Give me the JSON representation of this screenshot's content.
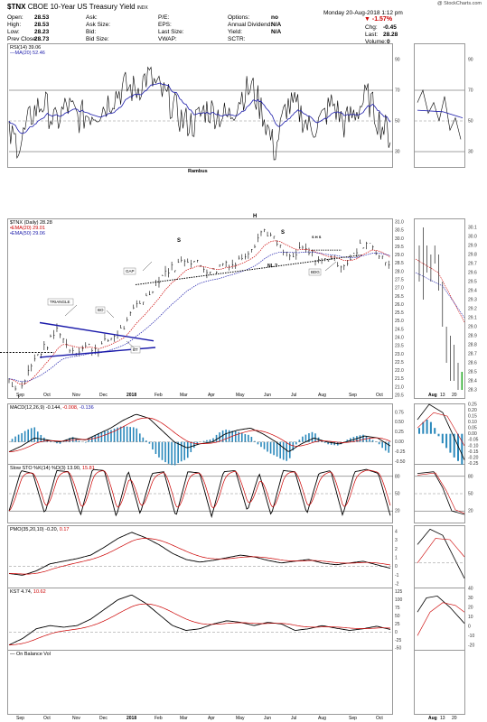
{
  "header": {
    "symbol": "$TNX",
    "name": "CBOE 10-Year US Treasury Yield",
    "exchange": "INDX",
    "copyright": "@ StockCharts.com",
    "date": "Monday  20-Aug-2018  1:12 pm",
    "fields": [
      {
        "k": "Open:",
        "v": "28.53"
      },
      {
        "k": "High:",
        "v": "28.53"
      },
      {
        "k": "Low:",
        "v": "28.23"
      },
      {
        "k": "Prev Close:",
        "v": "28.73"
      },
      {
        "k": "Ask:",
        "v": ""
      },
      {
        "k": "Ask Size:",
        "v": ""
      },
      {
        "k": "Bid:",
        "v": ""
      },
      {
        "k": "Bid Size:",
        "v": ""
      },
      {
        "k": "P/E:",
        "v": ""
      },
      {
        "k": "EPS:",
        "v": ""
      },
      {
        "k": "Last Size:",
        "v": ""
      },
      {
        "k": "VWAP:",
        "v": ""
      },
      {
        "k": "Options:",
        "v": "no"
      },
      {
        "k": "Annual Dividend:",
        "v": "N/A"
      },
      {
        "k": "Yield:",
        "v": "N/A"
      },
      {
        "k": "SCTR:",
        "v": ""
      }
    ],
    "change_pct": "▼ -1.57%",
    "chg_label": "Chg:",
    "chg_value": "-0.45",
    "last_label": "Last:",
    "last_value": "28.28",
    "vol_label": "Volume:",
    "vol_value": "0"
  },
  "colors": {
    "price": "#000000",
    "ema20": "#cc0000",
    "ema50": "#1a1aaa",
    "rsi_ma": "#1a1aaa",
    "hist": "#2a88bb",
    "trendline": "#1a1aaa",
    "gridline": "#888888"
  },
  "panels": {
    "rsi": {
      "legend_a": "RSI(14) 39.06",
      "legend_b": "—MA(20) 52.46",
      "ticks": [
        "90",
        "70",
        "50",
        "30"
      ],
      "annotation": "Rambus"
    },
    "price": {
      "legend_a": "$TNX (Daily) 28.28",
      "legend_b": "•EMA(20) 29.01",
      "legend_c": "•EMA(50) 29.06",
      "ticks": [
        "31.0",
        "30.5",
        "30.0",
        "29.5",
        "29.0",
        "28.5",
        "28.0",
        "27.5",
        "27.0",
        "26.5",
        "26.0",
        "25.5",
        "25.0",
        "24.5",
        "24.0",
        "23.5",
        "23.0",
        "22.5",
        "22.0",
        "21.5",
        "21.0",
        "20.5"
      ],
      "mini_ticks": [
        "30.1",
        "30.0",
        "29.9",
        "29.8",
        "29.7",
        "29.6",
        "29.5",
        "29.4",
        "29.3",
        "29.2",
        "29.1",
        "29.0",
        "28.9",
        "28.8",
        "28.7",
        "28.6",
        "28.5",
        "28.4",
        "28.3"
      ],
      "labels": {
        "triangle": "TRIANGLE",
        "bo": "BO",
        "bt": "BT",
        "gap": "GAP",
        "bdg": "BDG",
        "s1": "S",
        "h": "H",
        "s2": "S",
        "nl": "NL ?",
        "mini_hs": "S H S"
      }
    },
    "macd": {
      "legend_a": "MACD(12,26,9) -0.144,",
      "legend_b": "-0.008,",
      "legend_c": "-0.136",
      "ticks": [
        "0.75",
        "0.50",
        "0.25",
        "0.00",
        "-0.25",
        "-0.50"
      ],
      "mini_ticks": [
        "0.25",
        "0.20",
        "0.15",
        "0.10",
        "0.05",
        "0.00",
        "-0.05",
        "-0.10",
        "-0.15",
        "-0.20",
        "-0.25"
      ]
    },
    "sto": {
      "legend_a": "Slow STO %K(14) %D(3) 13.90,",
      "legend_b": "15.81",
      "ticks": [
        "80",
        "50",
        "20"
      ]
    },
    "pmo": {
      "legend_a": "PMO(35,20,10) -0.20,",
      "legend_b": "0.17",
      "ticks": [
        "4",
        "3",
        "2",
        "1",
        "0",
        "-1",
        "-2"
      ]
    },
    "kst": {
      "legend_a": "KST 4.74,",
      "legend_b": "10.62",
      "ticks": [
        "125",
        "100",
        "75",
        "50",
        "25",
        "0",
        "-25",
        "-50"
      ],
      "mini_ticks": [
        "40",
        "30",
        "20",
        "10",
        "0",
        "-10",
        "-20"
      ]
    },
    "obv": {
      "legend_a": "— On Balance Vol"
    }
  },
  "x_axis": {
    "main": [
      "Sep",
      "Oct",
      "Nov",
      "Dec",
      "2018",
      "Feb",
      "Mar",
      "Apr",
      "May",
      "Jun",
      "Jul",
      "Aug",
      "Sep",
      "Oct"
    ],
    "mini": [
      "Aug",
      "13",
      "20"
    ]
  },
  "chart_data": {
    "type": "line",
    "title": "$TNX CBOE 10-Year US Treasury Yield INDX",
    "series": [
      {
        "name": "$TNX (Daily)",
        "x": [
          "Sep",
          "Oct",
          "Nov",
          "Dec",
          "2018",
          "Feb",
          "Mar",
          "Apr",
          "May",
          "Jun",
          "Jul",
          "Aug"
        ],
        "values": [
          21.5,
          23.0,
          23.5,
          23.8,
          25.0,
          28.0,
          28.8,
          28.0,
          30.5,
          29.0,
          28.5,
          29.5
        ]
      },
      {
        "name": "EMA(20)",
        "last": 29.01
      },
      {
        "name": "EMA(50)",
        "last": 29.06
      }
    ],
    "last": 28.28,
    "ylim": [
      20.5,
      31.0
    ]
  }
}
